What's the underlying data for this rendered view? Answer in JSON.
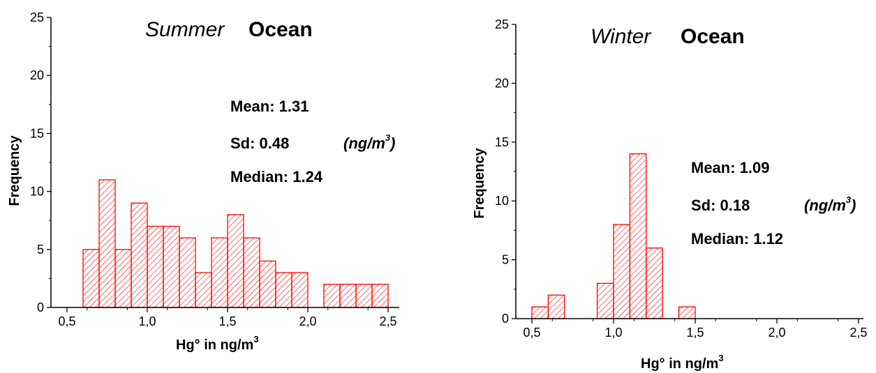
{
  "chart_data": [
    {
      "type": "bar",
      "title_italic": "Summer",
      "title_bold": "Ocean",
      "xlabel": "Hg° in ng/m",
      "xlabel_sup": "3",
      "ylabel": "Frequency",
      "xlim": [
        0.4,
        2.55
      ],
      "ylim": [
        0,
        25
      ],
      "xticks": [
        "0,5",
        "1,0",
        "1,5",
        "2,0",
        "2,5"
      ],
      "yticks": [
        "0",
        "5",
        "10",
        "15",
        "20",
        "25"
      ],
      "bin_width": 0.1,
      "bins_start": [
        0.6,
        0.7,
        0.8,
        0.9,
        1.0,
        1.1,
        1.2,
        1.3,
        1.4,
        1.5,
        1.6,
        1.7,
        1.8,
        1.9,
        2.0,
        2.1,
        2.2,
        2.3,
        2.4
      ],
      "values": [
        5,
        11,
        5,
        9,
        7,
        7,
        6,
        3,
        6,
        8,
        6,
        4,
        3,
        3,
        0,
        2,
        2,
        2,
        2
      ],
      "stats": {
        "mean": "Mean: 1.31",
        "sd": "Sd: 0.48",
        "median": "Median: 1.24",
        "unit": "(ng/m",
        "unit_sup": "3",
        "unit_close": ")"
      },
      "bar_color": "#ff0000"
    },
    {
      "type": "bar",
      "title_italic": "Winter",
      "title_bold": "Ocean",
      "xlabel": "Hg° in ng/m",
      "xlabel_sup": "3",
      "ylabel": "Frequency",
      "xlim": [
        0.4,
        2.55
      ],
      "ylim": [
        0,
        25
      ],
      "xticks": [
        "0,5",
        "1,0",
        "1,5",
        "2,0",
        "2,5"
      ],
      "yticks": [
        "0",
        "5",
        "10",
        "15",
        "20",
        "25"
      ],
      "bin_width": 0.1,
      "bins_start": [
        0.5,
        0.6,
        0.7,
        0.8,
        0.9,
        1.0,
        1.1,
        1.2,
        1.3,
        1.4
      ],
      "values": [
        1,
        2,
        0,
        0,
        3,
        8,
        14,
        6,
        0,
        1
      ],
      "stats": {
        "mean": "Mean: 1.09",
        "sd": "Sd: 0.18",
        "median": "Median: 1.12",
        "unit": "(ng/m",
        "unit_sup": "3",
        "unit_close": ")"
      },
      "bar_color": "#ff0000"
    }
  ]
}
